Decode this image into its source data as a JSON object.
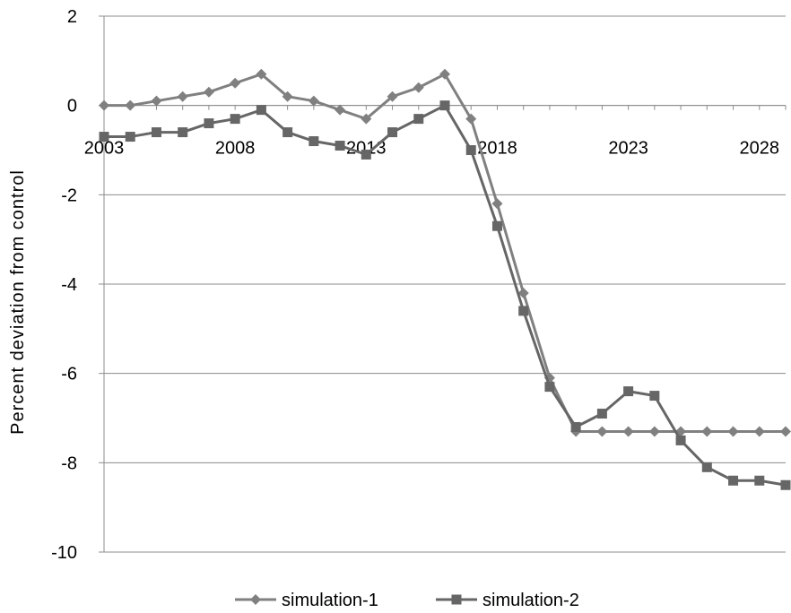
{
  "chart_data": {
    "type": "line",
    "ylabel": "Percent deviation from control",
    "ylim": [
      -10,
      2
    ],
    "y_ticks": [
      2,
      0,
      -2,
      -4,
      -6,
      -8,
      -10
    ],
    "x_ticks": [
      2003,
      2008,
      2013,
      2018,
      2023,
      2028
    ],
    "x": [
      2003,
      2004,
      2005,
      2006,
      2007,
      2008,
      2009,
      2010,
      2011,
      2012,
      2013,
      2014,
      2015,
      2016,
      2017,
      2018,
      2019,
      2020,
      2021,
      2022,
      2023,
      2024,
      2025,
      2026,
      2027,
      2028,
      2029
    ],
    "gridlines": "horizontal",
    "legend_position": "bottom",
    "series": [
      {
        "name": "simulation-1",
        "marker": "diamond",
        "color": "#808080",
        "values": [
          0,
          0,
          0.1,
          0.2,
          0.3,
          0.5,
          0.7,
          0.2,
          0.1,
          -0.1,
          -0.3,
          0.2,
          0.4,
          0.7,
          -0.3,
          -2.2,
          -4.2,
          -6.1,
          -7.3,
          -7.3,
          -7.3,
          -7.3,
          -7.3,
          -7.3,
          -7.3,
          -7.3,
          -7.3
        ]
      },
      {
        "name": "simulation-2",
        "marker": "square",
        "color": "#666666",
        "values": [
          -0.7,
          -0.7,
          -0.6,
          -0.6,
          -0.4,
          -0.3,
          -0.1,
          -0.6,
          -0.8,
          -0.9,
          -1.1,
          -0.6,
          -0.3,
          0,
          -1.0,
          -2.7,
          -4.6,
          -6.3,
          -7.2,
          -6.9,
          -6.4,
          -6.5,
          -7.5,
          -8.1,
          -8.4,
          -8.4,
          -8.5
        ]
      }
    ]
  }
}
